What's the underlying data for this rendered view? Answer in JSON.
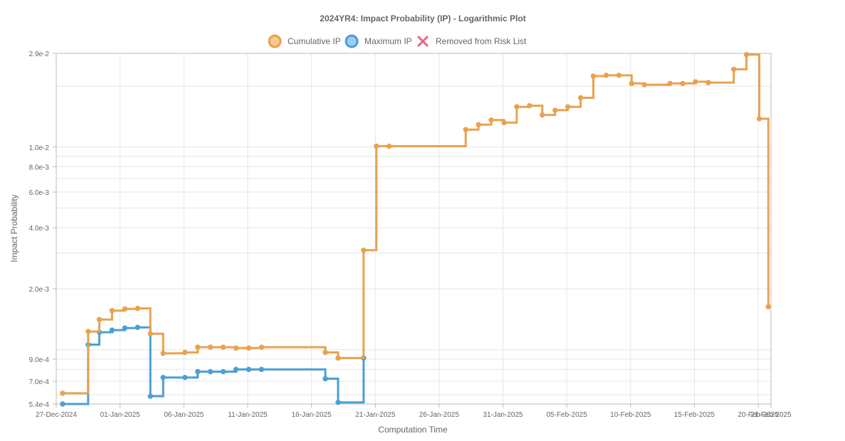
{
  "chart_data": {
    "type": "line",
    "title": "2024YR4: Impact Probability (IP) - Logarithmic Plot",
    "xlabel": "Computation Time",
    "ylabel": "Impact Probability",
    "y_scale": "log",
    "ylim": [
      0.00054,
      0.029
    ],
    "xlim": [
      "2024-12-27",
      "2025-02-21"
    ],
    "grid": true,
    "legend_position": "top-center",
    "y_ticks": [
      {
        "value": 0.029,
        "label": "2.9e-2"
      },
      {
        "value": 0.01,
        "label": "1.0e-2"
      },
      {
        "value": 0.008,
        "label": "8.0e-3"
      },
      {
        "value": 0.006,
        "label": "6.0e-3"
      },
      {
        "value": 0.004,
        "label": "4.0e-3"
      },
      {
        "value": 0.002,
        "label": "2.0e-3"
      },
      {
        "value": 0.0009,
        "label": "9.0e-4"
      },
      {
        "value": 0.0007,
        "label": "7.0e-4"
      },
      {
        "value": 0.00054,
        "label": "5.4e-4"
      }
    ],
    "y_minor_grid": [
      0.02,
      0.003,
      0.005,
      0.007,
      0.009,
      0.0008,
      0.0006,
      0.001
    ],
    "x_ticks": [
      {
        "value": "2024-12-27",
        "label": "27-Dec-2024"
      },
      {
        "value": "2025-01-01",
        "label": "01-Jan-2025"
      },
      {
        "value": "2025-01-06",
        "label": "06-Jan-2025"
      },
      {
        "value": "2025-01-11",
        "label": "11-Jan-2025"
      },
      {
        "value": "2025-01-16",
        "label": "16-Jan-2025"
      },
      {
        "value": "2025-01-21",
        "label": "21-Jan-2025"
      },
      {
        "value": "2025-01-26",
        "label": "26-Jan-2025"
      },
      {
        "value": "2025-01-31",
        "label": "31-Jan-2025"
      },
      {
        "value": "2025-02-05",
        "label": "05-Feb-2025"
      },
      {
        "value": "2025-02-10",
        "label": "10-Feb-2025"
      },
      {
        "value": "2025-02-15",
        "label": "15-Feb-2025"
      },
      {
        "value": "2025-02-20",
        "label": "20-Feb-2025"
      },
      {
        "value": "2025-02-21",
        "label": "21-Feb-2025"
      }
    ],
    "series": [
      {
        "name": "Cumulative IP",
        "color": "#e8a250",
        "fill": "#f7c98f",
        "step": "after",
        "points": [
          {
            "x": "2024-12-27T12:00",
            "y": 0.00061
          },
          {
            "x": "2024-12-29T12:00",
            "y": 0.00123
          },
          {
            "x": "2024-12-30T09:00",
            "y": 0.00141
          },
          {
            "x": "2024-12-31T09:00",
            "y": 0.00156
          },
          {
            "x": "2025-01-01T09:00",
            "y": 0.00159
          },
          {
            "x": "2025-01-02T09:00",
            "y": 0.0016
          },
          {
            "x": "2025-01-03T09:00",
            "y": 0.0012
          },
          {
            "x": "2025-01-04T09:00",
            "y": 0.00096
          },
          {
            "x": "2025-01-06T02:00",
            "y": 0.00097
          },
          {
            "x": "2025-01-07T02:00",
            "y": 0.00103
          },
          {
            "x": "2025-01-08T02:00",
            "y": 0.00103
          },
          {
            "x": "2025-01-09T02:00",
            "y": 0.00103
          },
          {
            "x": "2025-01-10T02:00",
            "y": 0.00102
          },
          {
            "x": "2025-01-11T02:00",
            "y": 0.00102
          },
          {
            "x": "2025-01-12T02:00",
            "y": 0.00103
          },
          {
            "x": "2025-01-17T02:00",
            "y": 0.00097
          },
          {
            "x": "2025-01-18T02:00",
            "y": 0.00091
          },
          {
            "x": "2025-01-20T02:00",
            "y": 0.0031
          },
          {
            "x": "2025-01-21T02:00",
            "y": 0.0101
          },
          {
            "x": "2025-01-22T02:00",
            "y": 0.0101
          },
          {
            "x": "2025-01-28T02:00",
            "y": 0.0122
          },
          {
            "x": "2025-01-29T02:00",
            "y": 0.0129
          },
          {
            "x": "2025-01-30T02:00",
            "y": 0.0136
          },
          {
            "x": "2025-01-31T02:00",
            "y": 0.0132
          },
          {
            "x": "2025-02-01T02:00",
            "y": 0.0158
          },
          {
            "x": "2025-02-02T02:00",
            "y": 0.016
          },
          {
            "x": "2025-02-03T02:00",
            "y": 0.0144
          },
          {
            "x": "2025-02-04T02:00",
            "y": 0.0152
          },
          {
            "x": "2025-02-05T02:00",
            "y": 0.0158
          },
          {
            "x": "2025-02-06T02:00",
            "y": 0.0175
          },
          {
            "x": "2025-02-07T02:00",
            "y": 0.0224
          },
          {
            "x": "2025-02-08T02:00",
            "y": 0.0226
          },
          {
            "x": "2025-02-09T02:00",
            "y": 0.0226
          },
          {
            "x": "2025-02-10T02:00",
            "y": 0.0206
          },
          {
            "x": "2025-02-11T02:00",
            "y": 0.0203
          },
          {
            "x": "2025-02-13T02:00",
            "y": 0.0206
          },
          {
            "x": "2025-02-14T02:00",
            "y": 0.0206
          },
          {
            "x": "2025-02-15T02:00",
            "y": 0.021
          },
          {
            "x": "2025-02-16T02:00",
            "y": 0.0208
          },
          {
            "x": "2025-02-18T02:00",
            "y": 0.0242
          },
          {
            "x": "2025-02-19T02:00",
            "y": 0.0286
          },
          {
            "x": "2025-02-20T02:00",
            "y": 0.0138
          },
          {
            "x": "2025-02-20T19:00",
            "y": 0.00163
          }
        ]
      },
      {
        "name": "Maximum IP",
        "color": "#4a9fd5",
        "fill": "#9ccdee",
        "step": "after",
        "points": [
          {
            "x": "2024-12-27T12:00",
            "y": 0.00054
          },
          {
            "x": "2024-12-29T12:00",
            "y": 0.00106
          },
          {
            "x": "2024-12-30T09:00",
            "y": 0.00122
          },
          {
            "x": "2024-12-31T09:00",
            "y": 0.00125
          },
          {
            "x": "2025-01-01T09:00",
            "y": 0.00128
          },
          {
            "x": "2025-01-02T09:00",
            "y": 0.00129
          },
          {
            "x": "2025-01-03T09:00",
            "y": 0.00059
          },
          {
            "x": "2025-01-04T09:00",
            "y": 0.00073
          },
          {
            "x": "2025-01-06T02:00",
            "y": 0.00073
          },
          {
            "x": "2025-01-07T02:00",
            "y": 0.00078
          },
          {
            "x": "2025-01-08T02:00",
            "y": 0.00078
          },
          {
            "x": "2025-01-09T02:00",
            "y": 0.00078
          },
          {
            "x": "2025-01-10T02:00",
            "y": 0.0008
          },
          {
            "x": "2025-01-11T02:00",
            "y": 0.0008
          },
          {
            "x": "2025-01-12T02:00",
            "y": 0.0008
          },
          {
            "x": "2025-01-17T02:00",
            "y": 0.00072
          },
          {
            "x": "2025-01-18T02:00",
            "y": 0.00055
          },
          {
            "x": "2025-01-20T02:00",
            "y": 0.00091
          }
        ]
      },
      {
        "name": "Removed from Risk List",
        "color": "#e8667f",
        "marker": "cross",
        "points": []
      }
    ]
  }
}
